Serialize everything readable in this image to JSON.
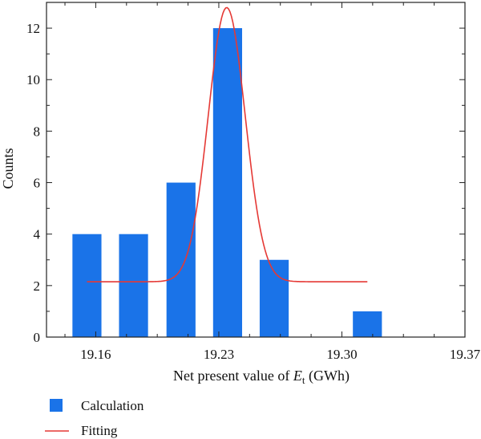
{
  "chart_data": {
    "type": "bar",
    "xlabel": {
      "prefix": "Net present value of ",
      "var": "E",
      "sub": "t",
      "suffix": " (GWh)"
    },
    "ylabel": "Counts",
    "xlim": [
      19.132,
      19.37
    ],
    "ylim": [
      0,
      13
    ],
    "x_ticks": [
      "19.16",
      "19.23",
      "19.30",
      "19.37"
    ],
    "y_ticks": [
      "0",
      "2",
      "4",
      "6",
      "8",
      "10",
      "12"
    ],
    "bar_width": 0.0165,
    "bars": [
      {
        "x": 19.155,
        "value": 4
      },
      {
        "x": 19.1815,
        "value": 4
      },
      {
        "x": 19.2085,
        "value": 6
      },
      {
        "x": 19.235,
        "value": 12
      },
      {
        "x": 19.2615,
        "value": 3
      },
      {
        "x": 19.3145,
        "value": 1
      }
    ],
    "fit": {
      "y0": 2.15,
      "amplitude": 10.65,
      "center": 19.2345,
      "sigma": 0.0105,
      "x_range": [
        19.155,
        19.3145
      ]
    },
    "legend": {
      "position": "bottom-left",
      "items": [
        {
          "label": "Calculation",
          "kind": "bar",
          "color": "#1a73e8"
        },
        {
          "label": "Fitting",
          "kind": "line",
          "color": "#e53935"
        }
      ]
    }
  }
}
